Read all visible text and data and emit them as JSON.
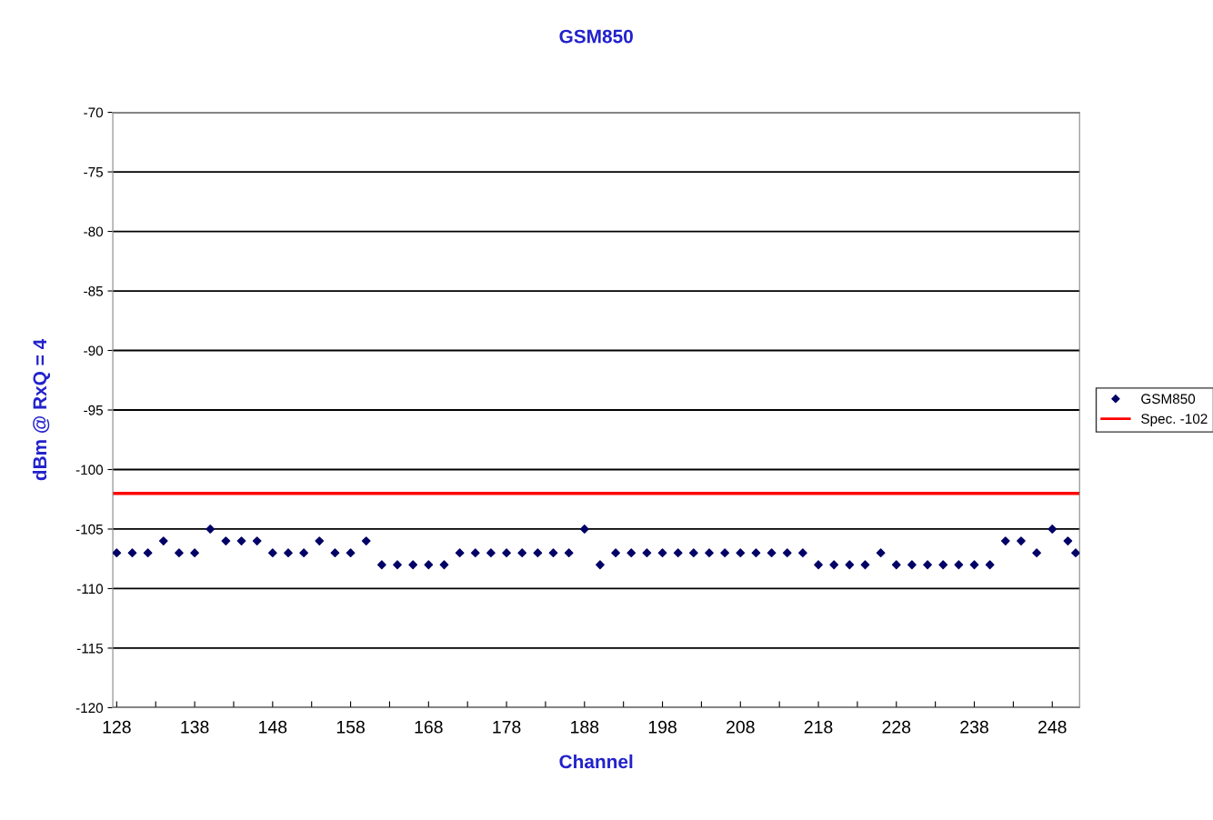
{
  "chart_data": {
    "type": "scatter",
    "title": "GSM850",
    "xlabel": "Channel",
    "ylabel": "dBm @ RxQ = 4",
    "x": [
      128,
      130,
      132,
      134,
      136,
      138,
      140,
      142,
      144,
      146,
      148,
      150,
      152,
      154,
      156,
      158,
      160,
      162,
      164,
      166,
      168,
      170,
      172,
      174,
      176,
      178,
      180,
      182,
      184,
      186,
      188,
      190,
      192,
      194,
      196,
      198,
      200,
      202,
      204,
      206,
      208,
      210,
      212,
      214,
      216,
      218,
      220,
      222,
      224,
      226,
      228,
      230,
      232,
      234,
      236,
      238,
      240,
      242,
      244,
      246,
      248,
      250,
      251
    ],
    "series": [
      {
        "name": "GSM850",
        "color": "#000066",
        "values": [
          -107,
          -107,
          -107,
          -106,
          -107,
          -107,
          -105,
          -106,
          -106,
          -106,
          -107,
          -107,
          -107,
          -106,
          -107,
          -107,
          -106,
          -108,
          -108,
          -108,
          -108,
          -108,
          -107,
          -107,
          -107,
          -107,
          -107,
          -107,
          -107,
          -107,
          -105,
          -108,
          -107,
          -107,
          -107,
          -107,
          -107,
          -107,
          -107,
          -107,
          -107,
          -107,
          -107,
          -107,
          -107,
          -108,
          -108,
          -108,
          -108,
          -107,
          -108,
          -108,
          -108,
          -108,
          -108,
          -108,
          -108,
          -106,
          -106,
          -107,
          -105,
          -106,
          -107
        ]
      }
    ],
    "ref_lines": [
      {
        "axis": "y",
        "value": -102,
        "label": "Spec. -102",
        "color": "#ff0000"
      }
    ],
    "xlim": [
      127.5,
      251.5
    ],
    "xticks": [
      128,
      {
        "value": 133,
        "label": null
      },
      138,
      {
        "value": 143,
        "label": null
      },
      148,
      {
        "value": 153,
        "label": null
      },
      158,
      {
        "value": 163,
        "label": null
      },
      168,
      {
        "value": 173,
        "label": null
      },
      178,
      {
        "value": 183,
        "label": null
      },
      188,
      {
        "value": 193,
        "label": null
      },
      198,
      {
        "value": 203,
        "label": null
      },
      208,
      {
        "value": 213,
        "label": null
      },
      218,
      {
        "value": 223,
        "label": null
      },
      228,
      {
        "value": 233,
        "label": null
      },
      238,
      {
        "value": 243,
        "label": null
      },
      248
    ],
    "ylim": [
      -120,
      -70
    ],
    "yticks": [
      -120,
      -115,
      -110,
      -105,
      -100,
      -95,
      -90,
      -85,
      -80,
      -75,
      -70
    ],
    "grid": "y",
    "legend": "right",
    "marker": "diamond"
  }
}
